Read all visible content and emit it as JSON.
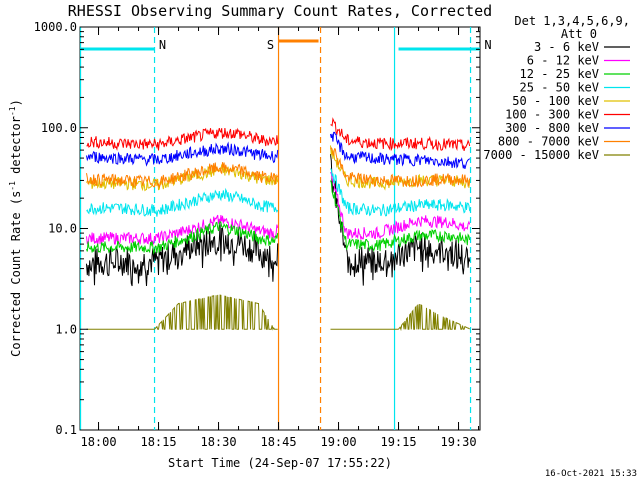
{
  "chart_data": {
    "type": "line",
    "title": "RHESSI Observing Summary Count Rates, Corrected",
    "xlabel": "Start Time (24-Sep-07 17:55:22)",
    "ylabel": "Corrected Count Rate (s⁻¹ detector⁻¹)",
    "ylabel_main": "Corrected Count Rate (s",
    "ylabel_exp1": "-1",
    "ylabel_mid": " detector",
    "ylabel_exp2": "-1",
    "ylabel_end": ")",
    "y_scale": "log",
    "ylim": [
      0.1,
      1000
    ],
    "xlim": [
      "17:55:22",
      "19:35:22"
    ],
    "x_ticks": [
      "18:00",
      "18:15",
      "18:30",
      "18:45",
      "19:00",
      "19:15",
      "19:30"
    ],
    "y_ticks": [
      "1000.0",
      "100.0",
      "10.0",
      "1.0",
      "0.1"
    ],
    "legend_header": [
      "Det 1,3,4,5,6,9,",
      "Att 0"
    ],
    "legend_position": "right",
    "timestamp": "16-Oct-2021 15:33",
    "flags": [
      {
        "label": "N",
        "color": "#00e5ee",
        "start": "17:55:22",
        "end": "18:14:00"
      },
      {
        "label": "N",
        "color": "#00e5ee",
        "start": "19:15:00",
        "end": "19:35:22"
      },
      {
        "label": "S",
        "color": "#ff8000",
        "start": "18:45:00",
        "end": "18:55:00"
      }
    ],
    "eclipse_boundaries": [
      {
        "time": "17:55:30",
        "color": "#00e5ee",
        "style": "solid"
      },
      {
        "time": "18:14:00",
        "color": "#00e5ee",
        "style": "dashed"
      },
      {
        "time": "19:14:00",
        "color": "#00e5ee",
        "style": "solid"
      },
      {
        "time": "19:33:00",
        "color": "#00e5ee",
        "style": "dashed"
      },
      {
        "time": "18:45:00",
        "color": "#ff8000",
        "style": "solid"
      },
      {
        "time": "18:55:30",
        "color": "#ff8000",
        "style": "dashed"
      }
    ],
    "data_gap": [
      "18:45:00",
      "18:58:00"
    ],
    "series": [
      {
        "name": "3 - 6 keV",
        "color": "#000000",
        "x": [
          "17:57",
          "18:05",
          "18:15",
          "18:22",
          "18:30",
          "18:35",
          "18:40",
          "18:44",
          "18:58",
          "19:02",
          "19:10",
          "19:20",
          "19:28",
          "19:33"
        ],
        "y": [
          4.5,
          4.8,
          4.8,
          6.5,
          8.0,
          7.5,
          6.0,
          5.5,
          40,
          5.0,
          4.8,
          6.5,
          6.0,
          4.8
        ]
      },
      {
        "name": "6 - 12 keV",
        "color": "#ff00ff",
        "x": [
          "17:57",
          "18:05",
          "18:15",
          "18:22",
          "18:30",
          "18:35",
          "18:40",
          "18:44",
          "18:58",
          "19:02",
          "19:10",
          "19:20",
          "19:28",
          "19:33"
        ],
        "y": [
          8.0,
          8.0,
          8.0,
          9.5,
          12.0,
          11.0,
          9.5,
          9.0,
          35,
          9.0,
          9.0,
          12.0,
          11.5,
          10.0
        ]
      },
      {
        "name": "12 - 25 keV",
        "color": "#00d000",
        "x": [
          "17:57",
          "18:05",
          "18:15",
          "18:22",
          "18:30",
          "18:35",
          "18:40",
          "18:44",
          "18:58",
          "19:02",
          "19:10",
          "19:20",
          "19:28",
          "19:33"
        ],
        "y": [
          6.5,
          6.5,
          6.5,
          8.0,
          10.5,
          9.5,
          8.0,
          7.5,
          30,
          7.0,
          6.8,
          8.5,
          8.5,
          7.5
        ]
      },
      {
        "name": "25 - 50 keV",
        "color": "#00e5ee",
        "x": [
          "17:57",
          "18:05",
          "18:15",
          "18:22",
          "18:30",
          "18:35",
          "18:40",
          "18:44",
          "18:58",
          "19:02",
          "19:10",
          "19:20",
          "19:28",
          "19:33"
        ],
        "y": [
          16,
          16,
          15,
          18,
          22,
          20,
          17,
          16,
          40,
          16,
          15,
          17,
          17,
          16
        ]
      },
      {
        "name": "50 - 100 keV",
        "color": "#e0c000",
        "x": [
          "17:57",
          "18:05",
          "18:15",
          "18:22",
          "18:30",
          "18:35",
          "18:40",
          "18:44",
          "18:58",
          "19:02",
          "19:10",
          "19:20",
          "19:28",
          "19:33"
        ],
        "y": [
          28,
          28,
          27,
          32,
          38,
          36,
          31,
          30,
          60,
          30,
          28,
          30,
          30,
          28
        ]
      },
      {
        "name": "100 - 300 keV",
        "color": "#ff0000",
        "x": [
          "17:57",
          "18:05",
          "18:15",
          "18:22",
          "18:30",
          "18:35",
          "18:40",
          "18:44",
          "18:58",
          "19:02",
          "19:10",
          "19:20",
          "19:28",
          "19:33"
        ],
        "y": [
          73,
          70,
          68,
          78,
          90,
          88,
          76,
          74,
          120,
          75,
          70,
          70,
          68,
          65
        ]
      },
      {
        "name": "300 - 800 keV",
        "color": "#0000ff",
        "x": [
          "17:57",
          "18:05",
          "18:15",
          "18:22",
          "18:30",
          "18:35",
          "18:40",
          "18:44",
          "18:58",
          "19:02",
          "19:10",
          "19:20",
          "19:28",
          "19:33"
        ],
        "y": [
          52,
          50,
          48,
          55,
          62,
          60,
          54,
          52,
          90,
          52,
          49,
          48,
          46,
          44
        ]
      },
      {
        "name": "800 - 7000 keV",
        "color": "#ff8000",
        "x": [
          "17:57",
          "18:05",
          "18:15",
          "18:22",
          "18:30",
          "18:35",
          "18:40",
          "18:44",
          "18:58",
          "19:02",
          "19:10",
          "19:20",
          "19:28",
          "19:33"
        ],
        "y": [
          31,
          30,
          29,
          34,
          40,
          38,
          33,
          31,
          70,
          32,
          30,
          30,
          31,
          30
        ]
      },
      {
        "name": "7000 - 15000 keV",
        "color": "#808000",
        "x": [
          "17:57",
          "18:14",
          "18:20",
          "18:30",
          "18:40",
          "18:44",
          "18:58",
          "19:15",
          "19:20",
          "19:25",
          "19:33"
        ],
        "y": [
          1.0,
          1.0,
          1.8,
          2.2,
          1.8,
          1.0,
          1.0,
          1.0,
          1.8,
          1.4,
          1.0
        ]
      }
    ]
  }
}
